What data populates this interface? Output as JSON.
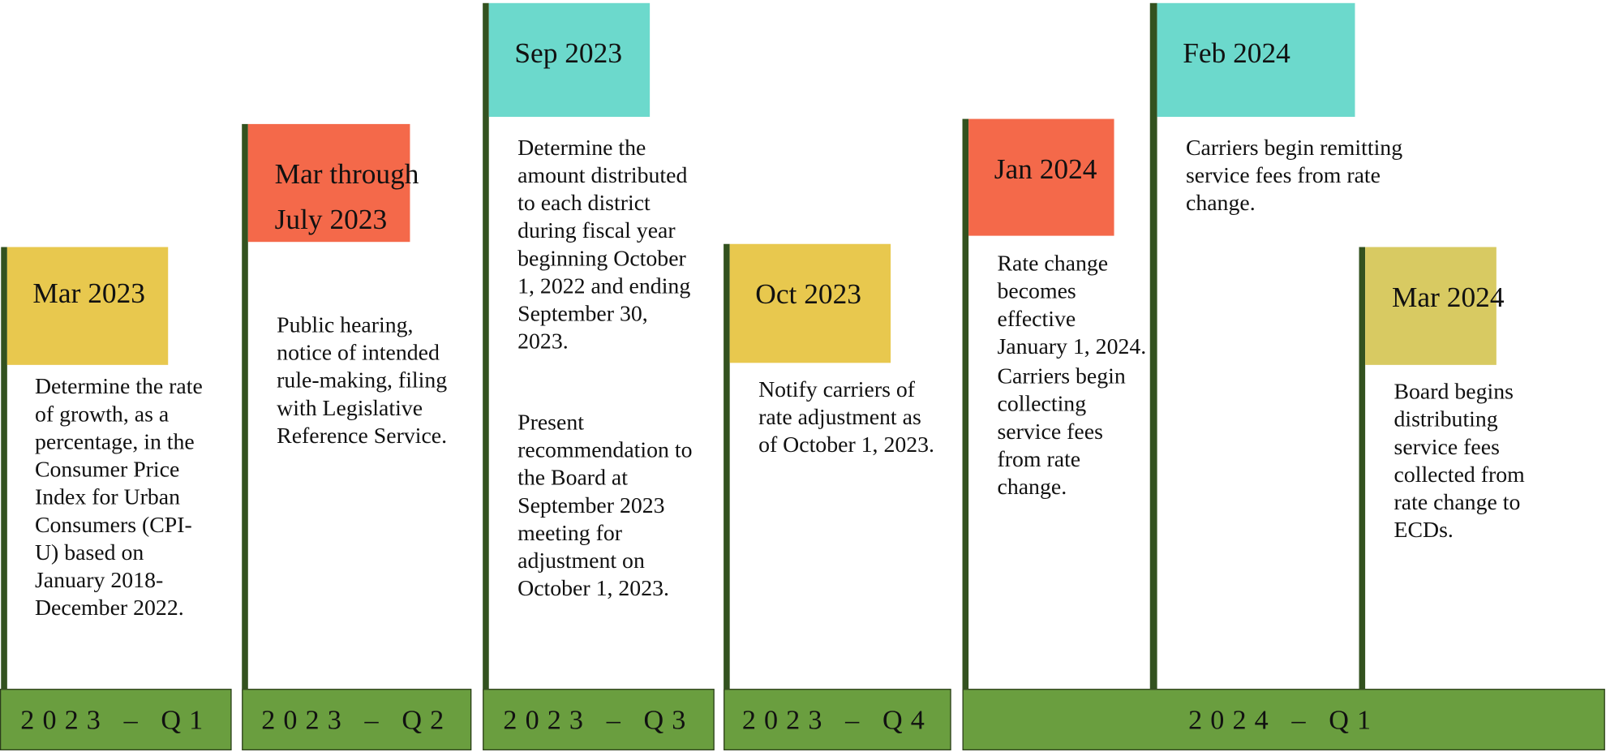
{
  "milestones": [
    {
      "date": "Mar 2023",
      "paragraphs": [
        "Determine the rate of growth, as a percentage, in the Consumer Price Index for Urban Consumers (CPI-U) based on January 2018-December 2022."
      ]
    },
    {
      "date": "Mar through July 2023",
      "paragraphs": [
        "Public hearing, notice of intended rule-making, filing with Legislative Reference Service."
      ]
    },
    {
      "date": "Sep 2023",
      "paragraphs": [
        "Determine the amount distributed to each district during fiscal year beginning October 1, 2022 and ending September 30, 2023.",
        "Present recommendation to the Board at September 2023 meeting for adjustment on October 1, 2023."
      ]
    },
    {
      "date": "Oct 2023",
      "paragraphs": [
        "Notify carriers of rate adjustment as of October 1, 2023."
      ]
    },
    {
      "date": "Jan 2024",
      "paragraphs": [
        "Rate change becomes effective January 1, 2024.",
        "Carriers begin collecting service fees from rate change."
      ]
    },
    {
      "date": "Feb 2024",
      "paragraphs": [
        "Carriers begin remitting service fees from rate change."
      ]
    },
    {
      "date": "Mar 2024",
      "paragraphs": [
        "Board begins distributing service fees collected from rate change to ECDs."
      ]
    }
  ],
  "quarters": [
    "2023 – Q1",
    "2023 – Q2",
    "2023 – Q3",
    "2023 – Q4",
    "2024 – Q1"
  ]
}
